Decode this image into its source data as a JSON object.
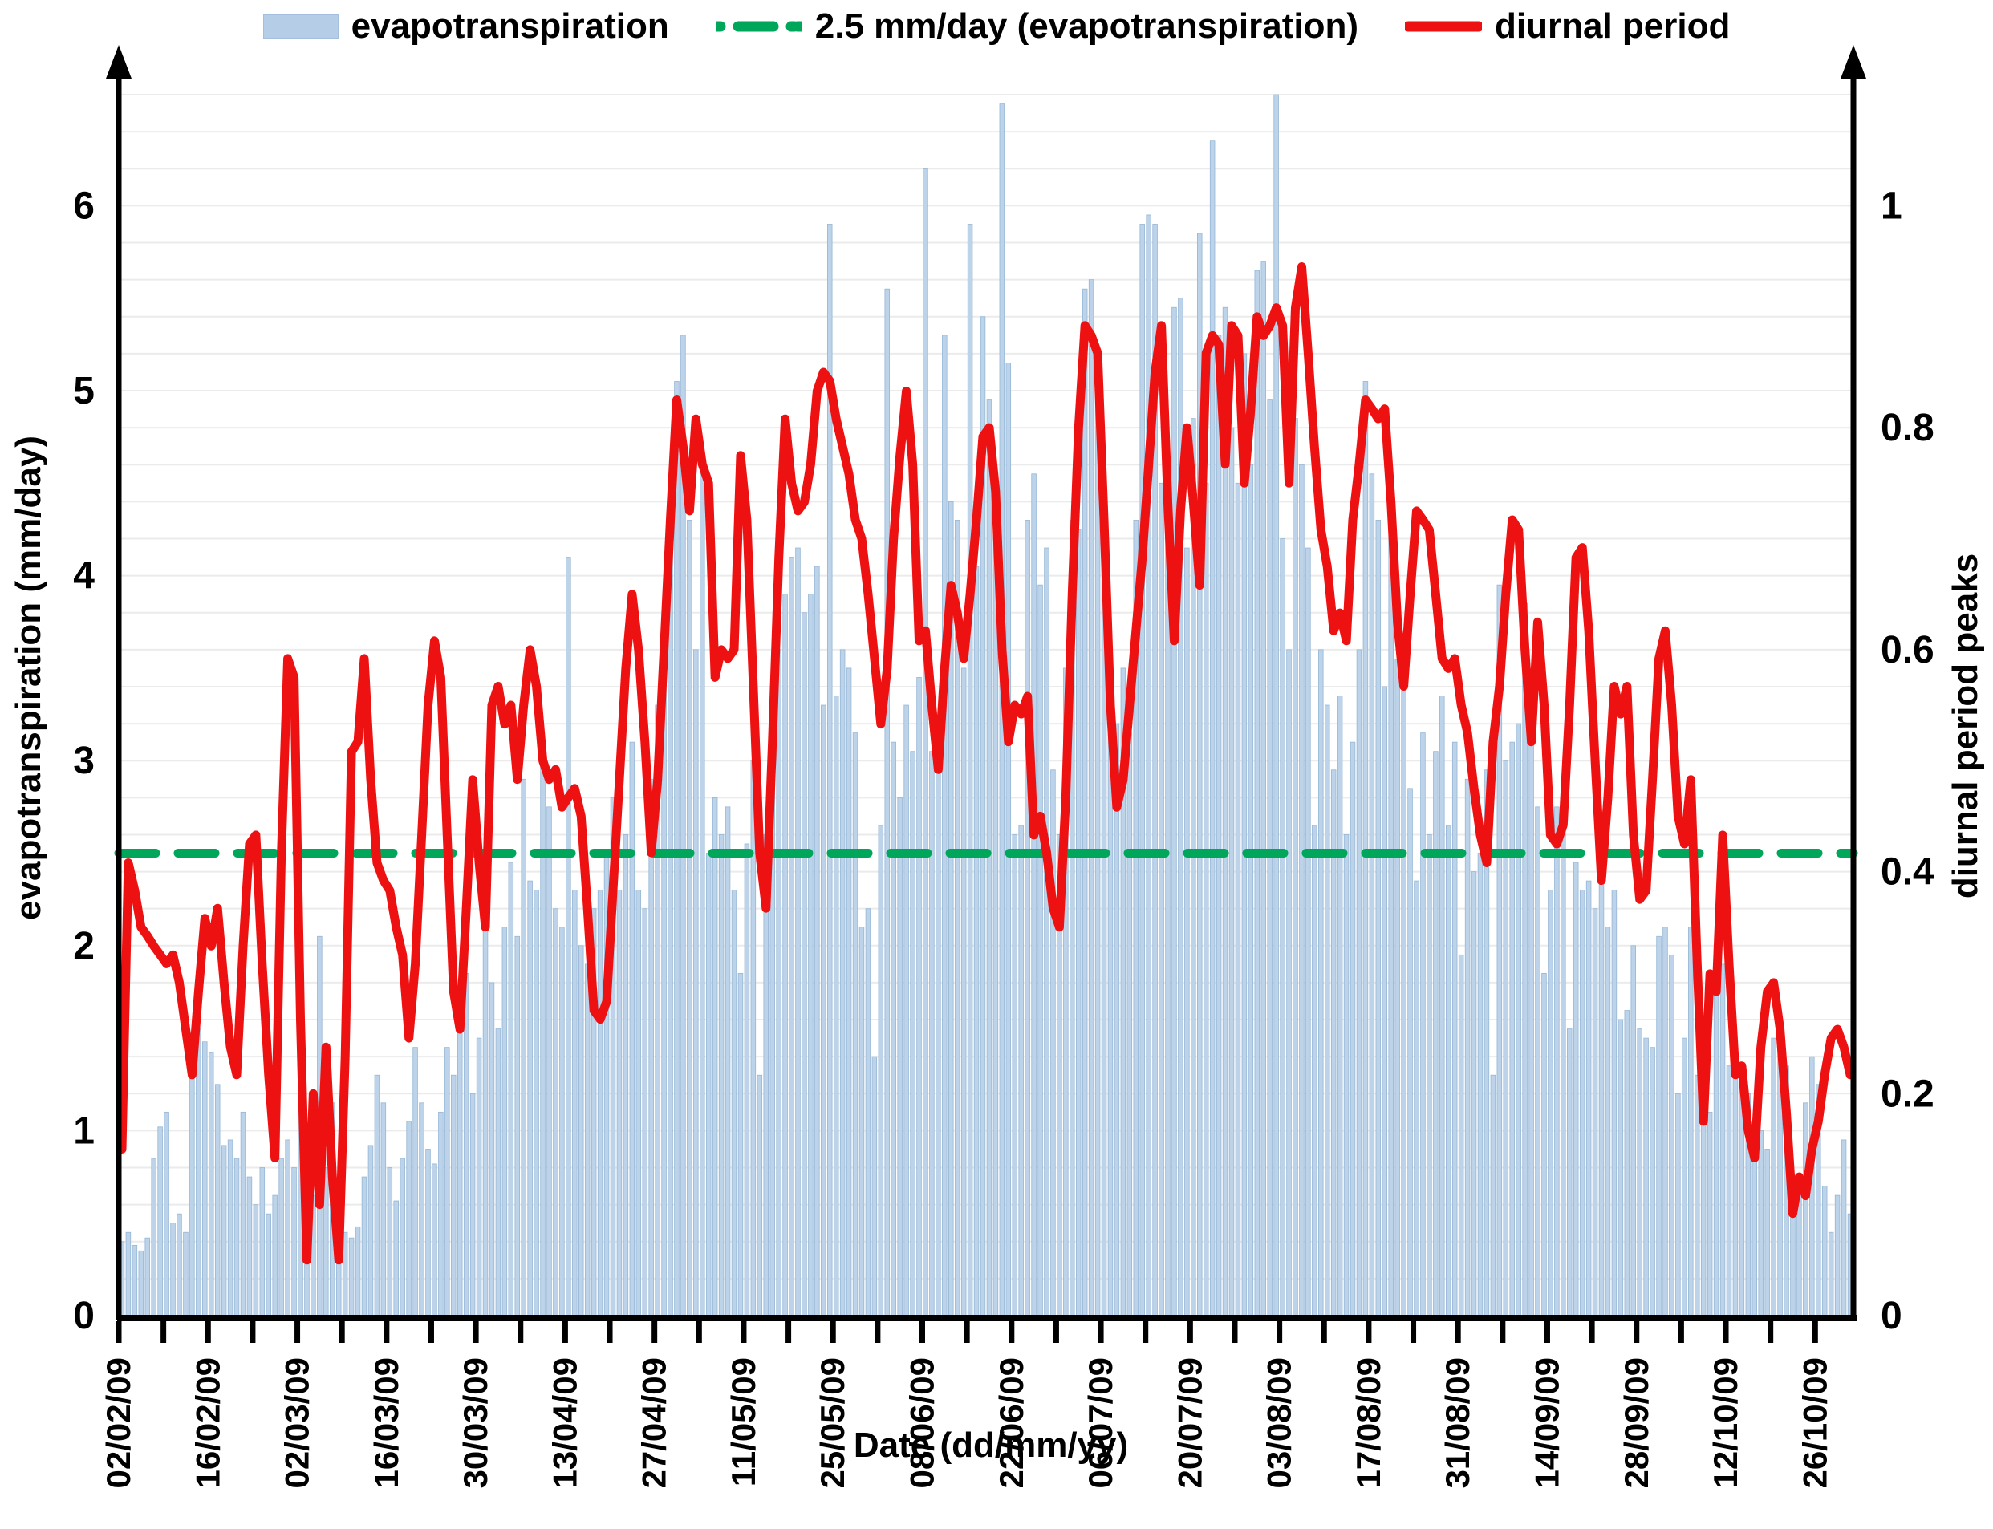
{
  "figure": {
    "legend": [
      {
        "label": "evapotranspiration",
        "marker": "bar-swatch",
        "color": "#b6cde8"
      },
      {
        "label": "2.5 mm/day (evapotranspiration)",
        "marker": "dashed-line",
        "color": "#00a65a"
      },
      {
        "label": "diurnal period",
        "marker": "solid-line",
        "color": "#ee1111"
      }
    ],
    "colors": {
      "bar_fill": "#bcd3ea",
      "bar_edge": "#96b7d6",
      "line_red": "#ee1111",
      "threshold_green": "#00a65a",
      "grid": "#ebebeb",
      "axis": "#000000"
    }
  },
  "chart_data": {
    "type": "bar",
    "subtype": "combo bar+line, dual y-axis, daily values",
    "x_axis": {
      "label": "Date (dd/mm/yy)",
      "tick_labels": [
        "02/02/09",
        "16/02/09",
        "02/03/09",
        "16/03/09",
        "30/03/09",
        "13/04/09",
        "27/04/09",
        "11/05/09",
        "25/05/09",
        "08/06/09",
        "22/06/09",
        "06/07/09",
        "20/07/09",
        "03/08/09",
        "17/08/09",
        "31/08/09",
        "14/09/09",
        "28/09/09",
        "12/10/09",
        "26/10/09"
      ],
      "tick_day_indices": [
        0,
        14,
        28,
        42,
        56,
        70,
        84,
        98,
        112,
        126,
        140,
        154,
        168,
        182,
        196,
        210,
        224,
        238,
        252,
        266
      ],
      "minor_tick_every_days": 7,
      "n_days": 272
    },
    "left_axis": {
      "label": "evapotranspiration (mm/day)",
      "range": [
        0,
        6.7
      ],
      "ticks": [
        0,
        1,
        2,
        3,
        4,
        5,
        6
      ]
    },
    "right_axis": {
      "label": "diurnal period peaks",
      "range": [
        0,
        1.117
      ],
      "ticks": [
        0,
        0.2,
        0.4,
        0.6,
        0.8,
        1
      ]
    },
    "grid": {
      "horizontal_step_left_units": 0.2,
      "visible": true
    },
    "legend_position": "top-center",
    "series": [
      {
        "name": "evapotranspiration",
        "type": "bar",
        "axis": "left",
        "unit": "mm/day",
        "values": [
          0.4,
          0.45,
          0.38,
          0.35,
          0.42,
          0.85,
          1.02,
          1.1,
          0.5,
          0.55,
          0.45,
          1.28,
          1.55,
          1.48,
          1.42,
          1.25,
          0.92,
          0.95,
          0.85,
          1.1,
          0.75,
          0.6,
          0.8,
          0.55,
          0.65,
          0.85,
          0.95,
          0.8,
          1.15,
          0.9,
          0.65,
          2.05,
          0.8,
          1.15,
          0.5,
          0.45,
          0.42,
          0.48,
          0.75,
          0.92,
          1.3,
          1.15,
          0.8,
          0.62,
          0.85,
          1.05,
          1.45,
          1.15,
          0.9,
          0.82,
          1.1,
          1.45,
          1.3,
          1.55,
          1.85,
          1.2,
          1.5,
          2.3,
          1.8,
          1.55,
          2.1,
          2.45,
          2.05,
          2.9,
          2.35,
          2.3,
          3.1,
          2.75,
          2.2,
          2.1,
          4.1,
          2.3,
          2.0,
          1.9,
          2.2,
          2.3,
          2.5,
          2.8,
          2.3,
          2.6,
          3.1,
          2.3,
          2.2,
          2.9,
          3.3,
          3.75,
          4.55,
          5.05,
          5.3,
          4.3,
          3.6,
          4.65,
          2.5,
          2.8,
          2.6,
          2.75,
          2.3,
          1.85,
          2.55,
          3.0,
          1.3,
          2.6,
          3.4,
          3.6,
          3.9,
          4.1,
          4.15,
          3.8,
          3.9,
          4.05,
          3.3,
          5.9,
          3.35,
          3.6,
          3.5,
          3.15,
          2.1,
          2.2,
          1.4,
          2.65,
          5.55,
          3.1,
          2.8,
          3.3,
          3.05,
          3.45,
          6.2,
          3.05,
          3.0,
          5.3,
          4.4,
          4.3,
          3.5,
          5.9,
          4.05,
          5.4,
          4.95,
          4.4,
          6.55,
          5.15,
          2.6,
          2.65,
          4.3,
          4.55,
          3.95,
          4.15,
          2.95,
          2.6,
          3.5,
          4.3,
          4.25,
          5.55,
          5.6,
          5.15,
          4.45,
          3.55,
          3.2,
          3.5,
          3.15,
          4.3,
          5.9,
          5.95,
          5.9,
          4.5,
          4.65,
          5.45,
          5.5,
          4.15,
          4.85,
          5.85,
          4.5,
          6.35,
          5.3,
          5.45,
          4.8,
          4.5,
          5.2,
          4.6,
          5.65,
          5.7,
          4.95,
          6.6,
          4.2,
          3.6,
          4.85,
          4.6,
          4.15,
          2.65,
          3.6,
          3.3,
          2.95,
          3.35,
          2.6,
          3.1,
          3.6,
          5.05,
          4.55,
          4.3,
          3.4,
          4.25,
          3.55,
          3.5,
          2.85,
          2.35,
          3.15,
          2.6,
          3.05,
          3.35,
          2.65,
          3.1,
          1.95,
          2.9,
          2.4,
          2.5,
          2.95,
          1.3,
          3.95,
          3.0,
          3.1,
          3.2,
          3.85,
          3.1,
          2.75,
          1.85,
          2.3,
          2.75,
          2.8,
          1.55,
          2.45,
          2.3,
          2.35,
          2.2,
          2.4,
          2.1,
          2.3,
          1.6,
          1.65,
          2.0,
          1.55,
          1.5,
          1.45,
          2.05,
          2.1,
          1.95,
          1.2,
          1.5,
          2.1,
          1.3,
          1.25,
          1.1,
          2.0,
          1.9,
          1.35,
          1.3,
          1.25,
          1.2,
          0.95,
          1.0,
          0.9,
          1.5,
          1.6,
          1.35,
          0.75,
          0.7,
          1.15,
          1.4,
          1.25,
          0.7,
          0.45,
          0.65,
          0.95,
          0.55
        ]
      },
      {
        "name": "diurnal period",
        "type": "line",
        "axis": "right",
        "values": [
          0.15,
          0.408,
          0.383,
          0.35,
          0.342,
          0.333,
          0.325,
          0.317,
          0.325,
          0.3,
          0.258,
          0.217,
          0.292,
          0.358,
          0.333,
          0.367,
          0.3,
          0.242,
          0.217,
          0.333,
          0.425,
          0.433,
          0.317,
          0.217,
          0.142,
          0.417,
          0.592,
          0.575,
          0.267,
          0.05,
          0.2,
          0.1,
          0.242,
          0.125,
          0.05,
          0.233,
          0.508,
          0.517,
          0.592,
          0.483,
          0.408,
          0.392,
          0.383,
          0.35,
          0.325,
          0.25,
          0.317,
          0.433,
          0.55,
          0.608,
          0.575,
          0.433,
          0.292,
          0.258,
          0.367,
          0.483,
          0.408,
          0.35,
          0.55,
          0.567,
          0.533,
          0.55,
          0.483,
          0.55,
          0.6,
          0.567,
          0.5,
          0.483,
          0.492,
          0.458,
          0.467,
          0.475,
          0.45,
          0.367,
          0.275,
          0.267,
          0.283,
          0.383,
          0.483,
          0.583,
          0.65,
          0.6,
          0.517,
          0.417,
          0.483,
          0.6,
          0.717,
          0.825,
          0.783,
          0.725,
          0.808,
          0.767,
          0.75,
          0.575,
          0.6,
          0.592,
          0.6,
          0.775,
          0.717,
          0.567,
          0.417,
          0.367,
          0.517,
          0.683,
          0.808,
          0.75,
          0.725,
          0.733,
          0.767,
          0.833,
          0.85,
          0.842,
          0.808,
          0.783,
          0.758,
          0.717,
          0.7,
          0.65,
          0.592,
          0.533,
          0.583,
          0.7,
          0.775,
          0.833,
          0.767,
          0.608,
          0.617,
          0.55,
          0.492,
          0.583,
          0.658,
          0.633,
          0.592,
          0.65,
          0.717,
          0.792,
          0.8,
          0.742,
          0.6,
          0.517,
          0.55,
          0.542,
          0.558,
          0.433,
          0.45,
          0.417,
          0.367,
          0.35,
          0.467,
          0.65,
          0.8,
          0.892,
          0.883,
          0.867,
          0.717,
          0.55,
          0.458,
          0.483,
          0.55,
          0.617,
          0.683,
          0.767,
          0.85,
          0.892,
          0.733,
          0.608,
          0.725,
          0.8,
          0.733,
          0.658,
          0.867,
          0.883,
          0.875,
          0.767,
          0.892,
          0.883,
          0.75,
          0.817,
          0.9,
          0.883,
          0.892,
          0.908,
          0.892,
          0.75,
          0.908,
          0.945,
          0.867,
          0.783,
          0.708,
          0.675,
          0.617,
          0.633,
          0.608,
          0.717,
          0.767,
          0.825,
          0.817,
          0.808,
          0.817,
          0.733,
          0.625,
          0.567,
          0.65,
          0.725,
          0.717,
          0.708,
          0.65,
          0.592,
          0.583,
          0.592,
          0.55,
          0.525,
          0.475,
          0.433,
          0.408,
          0.517,
          0.567,
          0.65,
          0.717,
          0.708,
          0.6,
          0.517,
          0.625,
          0.55,
          0.433,
          0.425,
          0.442,
          0.55,
          0.683,
          0.692,
          0.617,
          0.5,
          0.392,
          0.467,
          0.567,
          0.542,
          0.567,
          0.433,
          0.375,
          0.383,
          0.483,
          0.592,
          0.617,
          0.55,
          0.45,
          0.425,
          0.483,
          0.317,
          0.175,
          0.308,
          0.292,
          0.433,
          0.317,
          0.217,
          0.225,
          0.167,
          0.142,
          0.242,
          0.292,
          0.3,
          0.258,
          0.183,
          0.092,
          0.125,
          0.108,
          0.15,
          0.175,
          0.217,
          0.25,
          0.258,
          0.242,
          0.217
        ]
      },
      {
        "name": "2.5 mm/day (evapotranspiration)",
        "type": "threshold",
        "axis": "left",
        "value": 2.5
      }
    ]
  }
}
